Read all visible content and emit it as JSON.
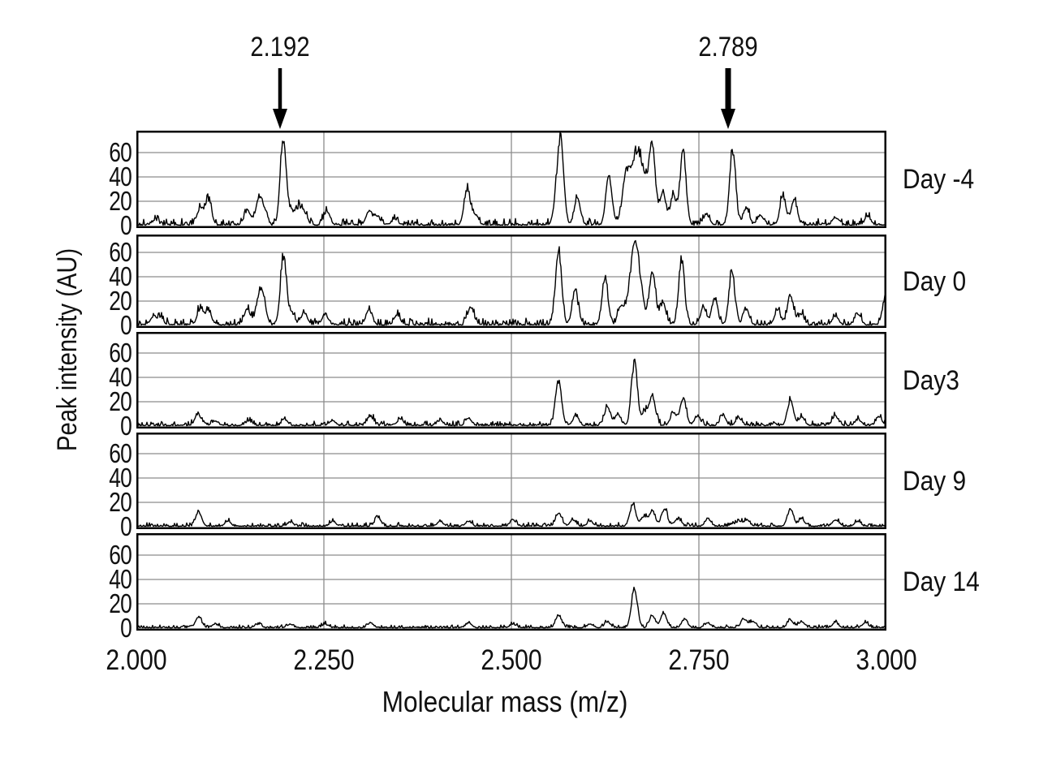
{
  "figure": {
    "background": "#ffffff",
    "trace_color": "#000000",
    "grid_color": "#8c8c8c",
    "border_color": "#000000"
  },
  "chart_data": {
    "type": "line",
    "title": "",
    "xlabel": "Molecular mass (m/z)",
    "ylabel": "Peak intensity (AU)",
    "xlim": [
      2.0,
      3.0
    ],
    "ylim": [
      0,
      78
    ],
    "grid": true,
    "x_ticks": [
      {
        "value": 2.0,
        "label": "2.000"
      },
      {
        "value": 2.25,
        "label": "2.250"
      },
      {
        "value": 2.5,
        "label": "2.500"
      },
      {
        "value": 2.75,
        "label": "2.750"
      },
      {
        "value": 3.0,
        "label": "3.000"
      }
    ],
    "y_ticks": [
      0,
      20,
      40,
      60
    ],
    "x_gridlines": [
      2.25,
      2.5,
      2.75
    ],
    "y_gridlines": [
      20,
      40,
      60
    ],
    "annotations": [
      {
        "label": "2.192",
        "x": 2.192,
        "arrow_stroke": 4.5
      },
      {
        "label": "2.789",
        "x": 2.789,
        "arrow_stroke": 7
      }
    ],
    "panels": [
      {
        "label": "Day -4",
        "seed": 7,
        "noise": 2.4,
        "peaks": [
          [
            2.025,
            4
          ],
          [
            2.085,
            13
          ],
          [
            2.096,
            21
          ],
          [
            2.148,
            12
          ],
          [
            2.163,
            20
          ],
          [
            2.17,
            12
          ],
          [
            2.196,
            70
          ],
          [
            2.207,
            10
          ],
          [
            2.216,
            12
          ],
          [
            2.224,
            10
          ],
          [
            2.254,
            11
          ],
          [
            2.31,
            11
          ],
          [
            2.321,
            7
          ],
          [
            2.345,
            5
          ],
          [
            2.441,
            29
          ],
          [
            2.452,
            8
          ],
          [
            2.56,
            18
          ],
          [
            2.566,
            65
          ],
          [
            2.588,
            23
          ],
          [
            2.63,
            41
          ],
          [
            2.652,
            22
          ],
          [
            2.668,
            61,
            0.011
          ],
          [
            2.688,
            54
          ],
          [
            2.702,
            26
          ],
          [
            2.716,
            24
          ],
          [
            2.729,
            59
          ],
          [
            2.76,
            9
          ],
          [
            2.795,
            62
          ],
          [
            2.813,
            14
          ],
          [
            2.832,
            8
          ],
          [
            2.862,
            23
          ],
          [
            2.877,
            21
          ],
          [
            2.932,
            6
          ],
          [
            2.975,
            7
          ]
        ]
      },
      {
        "label": "Day 0",
        "seed": 13,
        "noise": 2.4,
        "peaks": [
          [
            2.022,
            6
          ],
          [
            2.032,
            6
          ],
          [
            2.085,
            13
          ],
          [
            2.096,
            12
          ],
          [
            2.148,
            13
          ],
          [
            2.163,
            19
          ],
          [
            2.169,
            20
          ],
          [
            2.196,
            56
          ],
          [
            2.207,
            9
          ],
          [
            2.224,
            10
          ],
          [
            2.252,
            8
          ],
          [
            2.31,
            12
          ],
          [
            2.348,
            8
          ],
          [
            2.446,
            15
          ],
          [
            2.563,
            62
          ],
          [
            2.585,
            28
          ],
          [
            2.625,
            36
          ],
          [
            2.646,
            14
          ],
          [
            2.665,
            66,
            0.007
          ],
          [
            2.688,
            44
          ],
          [
            2.702,
            18
          ],
          [
            2.727,
            50
          ],
          [
            2.756,
            14
          ],
          [
            2.771,
            21
          ],
          [
            2.794,
            43
          ],
          [
            2.813,
            13
          ],
          [
            2.855,
            12
          ],
          [
            2.872,
            24
          ],
          [
            2.886,
            9
          ],
          [
            2.932,
            7
          ],
          [
            2.962,
            9
          ],
          [
            2.999,
            24
          ]
        ]
      },
      {
        "label": "Day3",
        "seed": 21,
        "noise": 1.8,
        "peaks": [
          [
            2.082,
            9
          ],
          [
            2.105,
            4
          ],
          [
            2.15,
            4
          ],
          [
            2.198,
            5
          ],
          [
            2.262,
            4
          ],
          [
            2.312,
            8
          ],
          [
            2.352,
            5
          ],
          [
            2.405,
            4
          ],
          [
            2.443,
            6
          ],
          [
            2.563,
            37
          ],
          [
            2.586,
            8
          ],
          [
            2.628,
            15
          ],
          [
            2.642,
            9
          ],
          [
            2.664,
            51
          ],
          [
            2.678,
            11
          ],
          [
            2.688,
            25
          ],
          [
            2.716,
            10
          ],
          [
            2.729,
            22
          ],
          [
            2.748,
            8
          ],
          [
            2.782,
            8
          ],
          [
            2.803,
            6
          ],
          [
            2.872,
            21
          ],
          [
            2.887,
            7
          ],
          [
            2.932,
            8
          ],
          [
            2.962,
            5
          ],
          [
            2.99,
            7
          ]
        ]
      },
      {
        "label": "Day 9",
        "seed": 5,
        "noise": 1.4,
        "peaks": [
          [
            2.083,
            12
          ],
          [
            2.122,
            4
          ],
          [
            2.205,
            3
          ],
          [
            2.262,
            4
          ],
          [
            2.322,
            7
          ],
          [
            2.405,
            4
          ],
          [
            2.443,
            4
          ],
          [
            2.502,
            5
          ],
          [
            2.563,
            11
          ],
          [
            2.582,
            5
          ],
          [
            2.605,
            4
          ],
          [
            2.662,
            18
          ],
          [
            2.677,
            8
          ],
          [
            2.688,
            12
          ],
          [
            2.704,
            14
          ],
          [
            2.722,
            6
          ],
          [
            2.762,
            6
          ],
          [
            2.803,
            4
          ],
          [
            2.814,
            5
          ],
          [
            2.872,
            14
          ],
          [
            2.887,
            6
          ],
          [
            2.932,
            5
          ],
          [
            2.962,
            4
          ]
        ]
      },
      {
        "label": "Day 14",
        "seed": 9,
        "noise": 1.1,
        "peaks": [
          [
            2.083,
            9
          ],
          [
            2.105,
            3
          ],
          [
            2.162,
            3
          ],
          [
            2.205,
            3
          ],
          [
            2.252,
            3
          ],
          [
            2.312,
            4
          ],
          [
            2.443,
            4
          ],
          [
            2.502,
            3
          ],
          [
            2.563,
            10
          ],
          [
            2.605,
            3
          ],
          [
            2.628,
            5
          ],
          [
            2.664,
            32
          ],
          [
            2.688,
            10
          ],
          [
            2.703,
            12
          ],
          [
            2.731,
            7
          ],
          [
            2.762,
            4
          ],
          [
            2.81,
            7
          ],
          [
            2.822,
            5
          ],
          [
            2.872,
            6
          ],
          [
            2.887,
            5
          ],
          [
            2.932,
            4
          ],
          [
            2.972,
            4
          ]
        ]
      }
    ]
  }
}
